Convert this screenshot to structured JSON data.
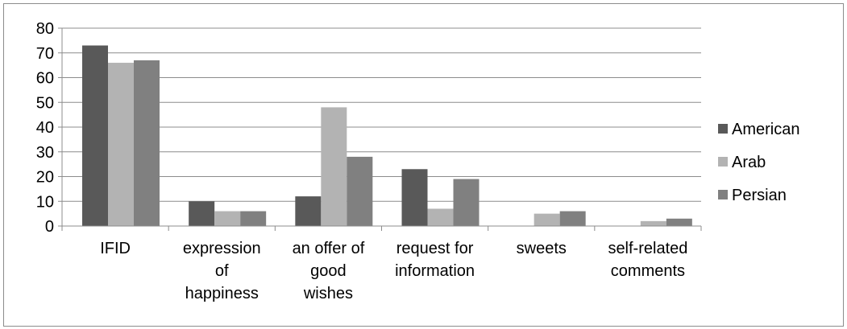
{
  "chart_data": {
    "type": "bar",
    "categories": [
      [
        "IFID"
      ],
      [
        "expression",
        "of",
        "happiness"
      ],
      [
        "an offer of",
        "good",
        "wishes"
      ],
      [
        "request for",
        "information"
      ],
      [
        "sweets"
      ],
      [
        "self-related",
        "comments"
      ]
    ],
    "series": [
      {
        "name": "American",
        "color": "#595959",
        "values": [
          73,
          10,
          12,
          23,
          0,
          0
        ]
      },
      {
        "name": "Arab",
        "color": "#b3b3b3",
        "values": [
          66,
          6,
          48,
          7,
          5,
          2
        ]
      },
      {
        "name": "Persian",
        "color": "#808080",
        "values": [
          67,
          6,
          28,
          19,
          6,
          3
        ]
      }
    ],
    "ylim": [
      0,
      80
    ],
    "yticks": [
      0,
      10,
      20,
      30,
      40,
      50,
      60,
      70,
      80
    ],
    "grid": true,
    "legend_position": "right"
  }
}
